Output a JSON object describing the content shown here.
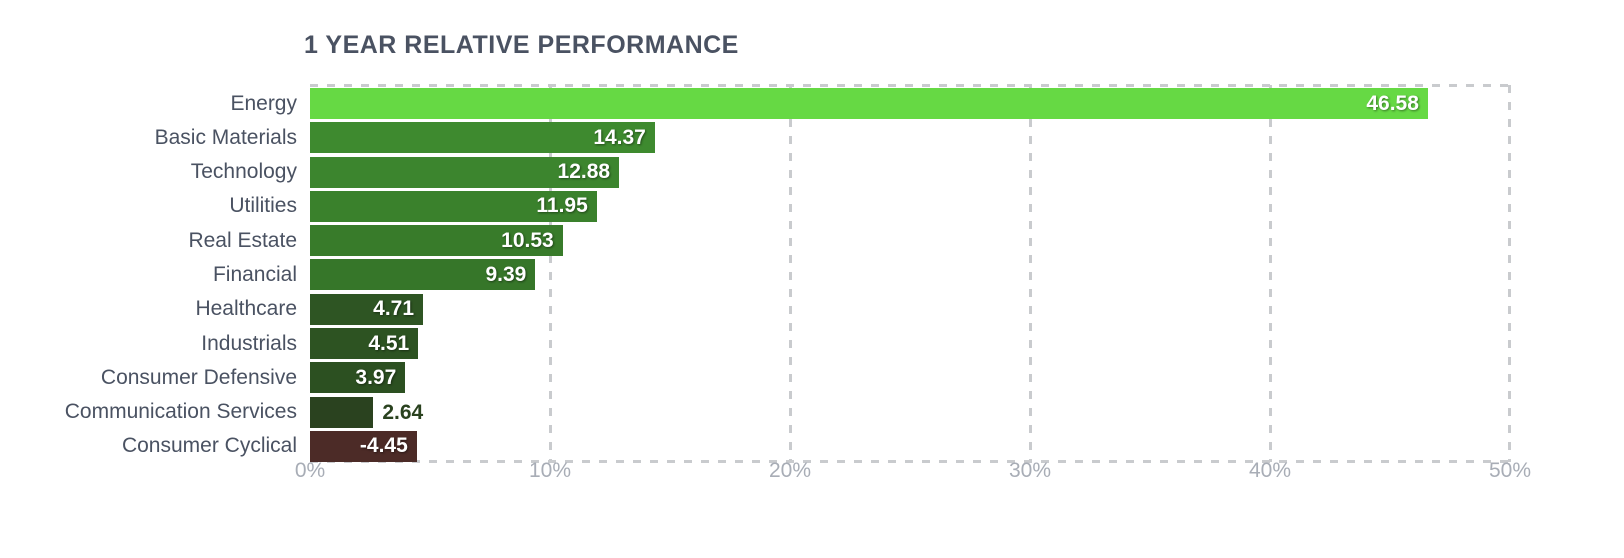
{
  "page": {
    "background": "#ffffff"
  },
  "style": {
    "title_color": "#4a5262",
    "category_label_color": "#4a5262",
    "axis_tick_color": "#a8adb6",
    "grid_color": "#c9cbce",
    "value_inside_color": "#ffffff",
    "value_outside_color": "#2a421f"
  },
  "chart_data": {
    "type": "bar",
    "orientation": "horizontal",
    "title": "1 YEAR RELATIVE PERFORMANCE",
    "categories": [
      "Energy",
      "Basic Materials",
      "Technology",
      "Utilities",
      "Real Estate",
      "Financial",
      "Healthcare",
      "Industrials",
      "Consumer Defensive",
      "Communication Services",
      "Consumer Cyclical"
    ],
    "values": [
      46.58,
      14.37,
      12.88,
      11.95,
      10.53,
      9.39,
      4.71,
      4.51,
      3.97,
      2.64,
      -4.45
    ],
    "value_labels": [
      "46.58",
      "14.37",
      "12.88",
      "11.95",
      "10.53",
      "9.39",
      "4.71",
      "4.51",
      "3.97",
      "2.64",
      "-4.45"
    ],
    "value_label_placement": [
      "inside",
      "inside",
      "inside",
      "inside",
      "inside",
      "inside",
      "inside",
      "inside",
      "inside",
      "outside",
      "inside"
    ],
    "bar_colors": [
      "#66d944",
      "#3e8a2f",
      "#3c852e",
      "#3a812c",
      "#387b2a",
      "#367629",
      "#2e5523",
      "#2d5322",
      "#2c5021",
      "#2a421f",
      "#4c2b27"
    ],
    "xlabel": "",
    "ylabel": "",
    "xlim": [
      0,
      50
    ],
    "x_tick_labels": [
      "0%",
      "10%",
      "20%",
      "30%",
      "40%",
      "50%"
    ],
    "x_tick_values": [
      0,
      10,
      20,
      30,
      40,
      50
    ],
    "gridlines": "vertical-dashed",
    "gridline_values": [
      10,
      20,
      30,
      40
    ],
    "legend": "none",
    "note_negative_bars": "negative value drawn as absolute-length bar in maroon"
  }
}
